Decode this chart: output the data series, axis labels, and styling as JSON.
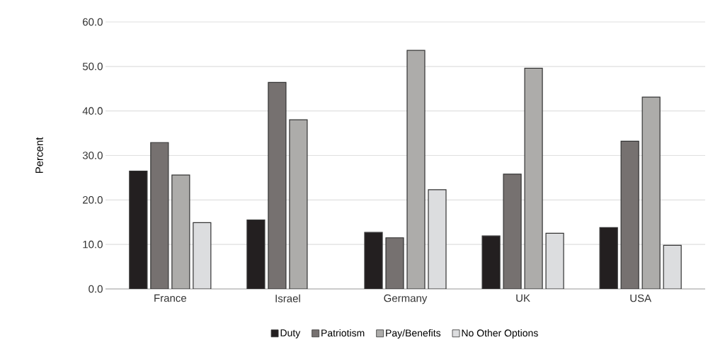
{
  "chart_data": {
    "type": "bar",
    "ylabel": "Percent",
    "categories": [
      "France",
      "Israel",
      "Germany",
      "UK",
      "USA"
    ],
    "series": [
      {
        "name": "Duty",
        "color": "#231f20",
        "values": [
          26.5,
          15.5,
          12.7,
          11.9,
          13.8
        ]
      },
      {
        "name": "Patriotism",
        "color": "#767170",
        "values": [
          32.9,
          46.4,
          11.5,
          25.8,
          33.2
        ]
      },
      {
        "name": "Pay/Benefits",
        "color": "#adacaa",
        "values": [
          25.6,
          38.0,
          53.6,
          49.6,
          43.1
        ]
      },
      {
        "name": "No Other Options",
        "color": "#dcdddf",
        "values": [
          14.9,
          null,
          22.3,
          12.5,
          9.8
        ]
      }
    ],
    "ylim": [
      0,
      60
    ],
    "yticks": [
      {
        "value": 0,
        "label": "0.0"
      },
      {
        "value": 10,
        "label": "10.0"
      },
      {
        "value": 20,
        "label": "20.0"
      },
      {
        "value": 30,
        "label": "30.0"
      },
      {
        "value": 40,
        "label": "40.0"
      },
      {
        "value": 50,
        "label": "50.0"
      },
      {
        "value": 60,
        "label": "60.0"
      }
    ],
    "grid": "y",
    "legend": "bottom"
  }
}
